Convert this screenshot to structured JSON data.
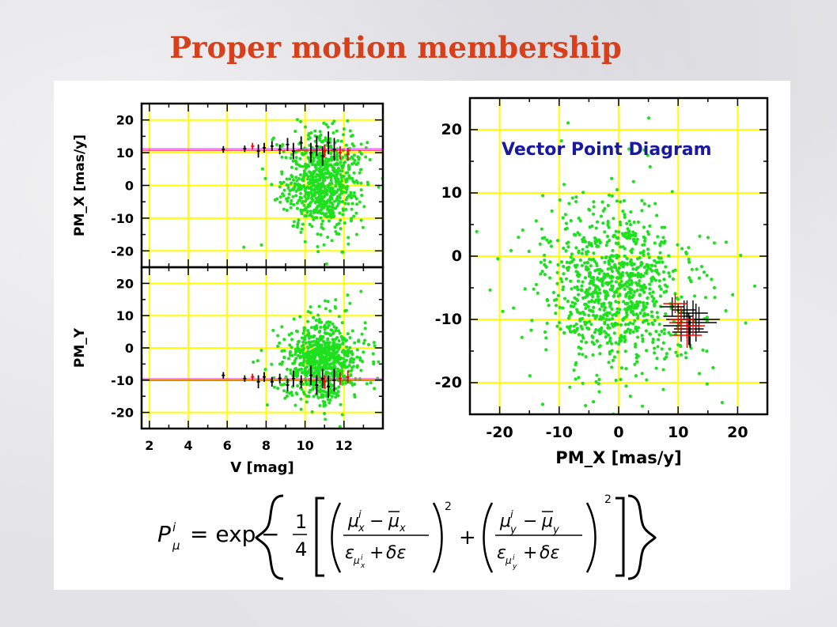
{
  "slide_title": "Proper motion membership",
  "formula": "P^i_μ = exp{ −1/4 [ ( (μ^i_x − μ̄_x) / (ε_{μ^i_x} + δε) )^2 + ( (μ^i_y − μ̄_y) / (ε_{μ^i_y} + δε) )^2 ] }",
  "colors": {
    "accent_title": "#d8401c",
    "grid": "#ffff00",
    "stars": "#1ee01e",
    "member_errbars": "#ff0000",
    "errbars": "#000000",
    "mean_line": "#ff40ff",
    "annotation": "#1818a0"
  },
  "chart_data": [
    {
      "type": "scatter",
      "id": "pmx_vs_v",
      "title": "",
      "xlabel": "",
      "ylabel": "PM_X [mas/y]",
      "xlim": [
        1.6,
        14
      ],
      "ylim": [
        -25,
        25
      ],
      "xticks": [
        "2",
        "4",
        "6",
        "8",
        "10",
        "12"
      ],
      "yticks": [
        "20",
        "10",
        "0",
        "-10",
        "-20"
      ],
      "grid": true,
      "reference_line": 11.2,
      "cloud": {
        "center_x": 11.0,
        "center_y": 1.0,
        "spread_x": 0.8,
        "spread_y": 7.5
      },
      "error_bar_points": [
        {
          "x": 5.8,
          "y": 11.0,
          "err": 1.0,
          "color": "black"
        },
        {
          "x": 6.9,
          "y": 11.2,
          "err": 1.0,
          "color": "black"
        },
        {
          "x": 7.3,
          "y": 12.0,
          "err": 1.0,
          "color": "red"
        },
        {
          "x": 7.6,
          "y": 10.5,
          "err": 2.0,
          "color": "black"
        },
        {
          "x": 7.9,
          "y": 11.5,
          "err": 1.5,
          "color": "black"
        },
        {
          "x": 8.3,
          "y": 12.0,
          "err": 1.5,
          "color": "black"
        },
        {
          "x": 8.7,
          "y": 11.0,
          "err": 1.5,
          "color": "black"
        },
        {
          "x": 9.1,
          "y": 12.5,
          "err": 2.0,
          "color": "black"
        },
        {
          "x": 9.4,
          "y": 10.5,
          "err": 2.5,
          "color": "black"
        },
        {
          "x": 9.8,
          "y": 13.0,
          "err": 2.0,
          "color": "black"
        },
        {
          "x": 10.3,
          "y": 10.0,
          "err": 3.0,
          "color": "black"
        },
        {
          "x": 10.6,
          "y": 12.0,
          "err": 3.0,
          "color": "black"
        },
        {
          "x": 10.9,
          "y": 9.0,
          "err": 3.0,
          "color": "black"
        },
        {
          "x": 11.2,
          "y": 13.0,
          "err": 3.5,
          "color": "black"
        },
        {
          "x": 11.5,
          "y": 11.0,
          "err": 3.5,
          "color": "black"
        },
        {
          "x": 11.0,
          "y": 10.5,
          "err": 2.0,
          "color": "red"
        },
        {
          "x": 11.8,
          "y": 10.0,
          "err": 2.0,
          "color": "red"
        },
        {
          "x": 12.2,
          "y": 9.5,
          "err": 2.0,
          "color": "red"
        }
      ]
    },
    {
      "type": "scatter",
      "id": "pmy_vs_v",
      "title": "",
      "xlabel": "V [mag]",
      "ylabel": "PM_Y",
      "xlim": [
        1.6,
        14
      ],
      "ylim": [
        -25,
        25
      ],
      "xticks": [
        "2",
        "4",
        "6",
        "8",
        "10",
        "12"
      ],
      "yticks": [
        "20",
        "10",
        "0",
        "-10",
        "-20"
      ],
      "grid": true,
      "reference_line": -9.6,
      "cloud": {
        "center_x": 11.0,
        "center_y": -4.0,
        "spread_x": 0.8,
        "spread_y": 6.5
      },
      "error_bar_points": [
        {
          "x": 5.8,
          "y": -8.5,
          "err": 1.0,
          "color": "black"
        },
        {
          "x": 6.9,
          "y": -9.5,
          "err": 1.0,
          "color": "black"
        },
        {
          "x": 7.3,
          "y": -9.0,
          "err": 1.0,
          "color": "red"
        },
        {
          "x": 7.6,
          "y": -10.5,
          "err": 2.0,
          "color": "black"
        },
        {
          "x": 7.9,
          "y": -9.0,
          "err": 1.5,
          "color": "black"
        },
        {
          "x": 8.3,
          "y": -10.5,
          "err": 1.5,
          "color": "black"
        },
        {
          "x": 8.7,
          "y": -9.5,
          "err": 1.5,
          "color": "black"
        },
        {
          "x": 9.1,
          "y": -11.5,
          "err": 2.0,
          "color": "black"
        },
        {
          "x": 9.4,
          "y": -9.5,
          "err": 2.5,
          "color": "black"
        },
        {
          "x": 9.8,
          "y": -10.5,
          "err": 2.0,
          "color": "black"
        },
        {
          "x": 10.3,
          "y": -8.5,
          "err": 3.0,
          "color": "black"
        },
        {
          "x": 10.6,
          "y": -11.5,
          "err": 3.0,
          "color": "black"
        },
        {
          "x": 10.9,
          "y": -9.5,
          "err": 3.0,
          "color": "black"
        },
        {
          "x": 11.2,
          "y": -12.0,
          "err": 3.5,
          "color": "black"
        },
        {
          "x": 11.5,
          "y": -10.0,
          "err": 3.5,
          "color": "black"
        },
        {
          "x": 11.0,
          "y": -10.5,
          "err": 2.0,
          "color": "red"
        },
        {
          "x": 11.8,
          "y": -9.5,
          "err": 2.0,
          "color": "red"
        },
        {
          "x": 12.2,
          "y": -9.0,
          "err": 2.0,
          "color": "red"
        }
      ]
    },
    {
      "type": "scatter",
      "id": "vector_point_diagram",
      "title": "",
      "annotation": "Vector Point Diagram",
      "xlabel": "PM_X [mas/y]",
      "ylabel": "",
      "xlim": [
        -25,
        25
      ],
      "ylim": [
        -25,
        25
      ],
      "xticks": [
        "-20",
        "-10",
        "0",
        "10",
        "20"
      ],
      "yticks": [
        "20",
        "10",
        "0",
        "-10",
        "-20"
      ],
      "grid": true,
      "cloud": {
        "center_x": -0.5,
        "center_y": -5.0,
        "spread_x": 5.5,
        "spread_y": 6.0
      },
      "cross_points": [
        {
          "x": 9.0,
          "y": -8.0,
          "ex": 2.0,
          "ey": 1.5,
          "color": "black"
        },
        {
          "x": 10.0,
          "y": -9.5,
          "ex": 2.5,
          "ey": 2.0,
          "color": "black"
        },
        {
          "x": 10.5,
          "y": -11.0,
          "ex": 3.0,
          "ey": 2.5,
          "color": "black"
        },
        {
          "x": 11.0,
          "y": -8.5,
          "ex": 2.0,
          "ey": 1.5,
          "color": "black"
        },
        {
          "x": 11.5,
          "y": -10.0,
          "ex": 3.5,
          "ey": 3.0,
          "color": "black"
        },
        {
          "x": 12.0,
          "y": -12.0,
          "ex": 3.0,
          "ey": 2.5,
          "color": "black"
        },
        {
          "x": 12.5,
          "y": -9.0,
          "ex": 2.5,
          "ey": 2.0,
          "color": "black"
        },
        {
          "x": 13.0,
          "y": -10.5,
          "ex": 3.5,
          "ey": 3.0,
          "color": "black"
        },
        {
          "x": 13.5,
          "y": -10.0,
          "ex": 3.5,
          "ey": 2.0,
          "color": "black"
        },
        {
          "x": 11.8,
          "y": -11.5,
          "ex": 2.5,
          "ey": 2.5,
          "color": "black"
        },
        {
          "x": 9.5,
          "y": -7.5,
          "ex": 2.0,
          "ey": 1.5,
          "color": "red"
        },
        {
          "x": 10.5,
          "y": -10.0,
          "ex": 2.0,
          "ey": 2.0,
          "color": "red"
        },
        {
          "x": 11.5,
          "y": -12.5,
          "ex": 2.5,
          "ey": 2.0,
          "color": "red"
        },
        {
          "x": 12.5,
          "y": -11.0,
          "ex": 2.0,
          "ey": 1.5,
          "color": "red"
        },
        {
          "x": 10.0,
          "y": -10.5,
          "ex": 1.5,
          "ey": 1.5,
          "color": "red"
        }
      ]
    }
  ]
}
